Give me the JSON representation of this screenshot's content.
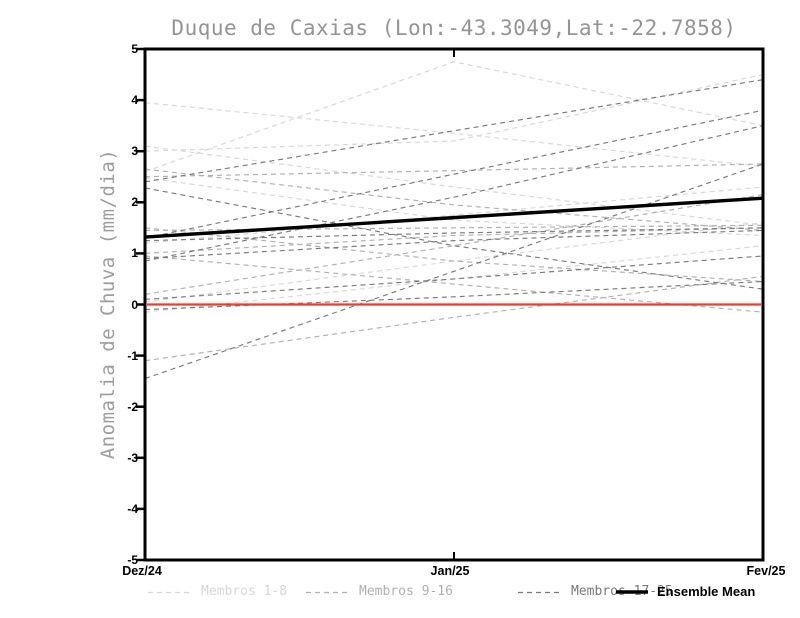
{
  "title": "Duque de Caxias (Lon:-43.3049,Lat:-22.7858)",
  "chart_data": {
    "type": "line",
    "title": "Duque de Caxias (Lon:-43.3049,Lat:-22.7858)",
    "xlabel": "",
    "ylabel": "Anomalia de Chuva (mm/dia)",
    "x": [
      "Dez/24",
      "Jan/25",
      "Fev/25"
    ],
    "ylim": [
      -5,
      5
    ],
    "yticks": [
      -5,
      -4,
      -3,
      -2,
      -1,
      0,
      1,
      2,
      3,
      4,
      5
    ],
    "grid": false,
    "legend_position": "bottom",
    "frame": "box",
    "zero_line": {
      "value": 0,
      "color": "#f23b2c"
    },
    "groups": [
      {
        "name": "Membros 1-8",
        "color": "#d7d7d7",
        "line_style": "dashed",
        "members": [
          [
            3.95,
            3.35,
            2.7
          ],
          [
            2.6,
            4.75,
            3.5
          ],
          [
            3.1,
            2.3,
            1.55
          ],
          [
            3.0,
            3.2,
            4.5
          ],
          [
            2.48,
            1.65,
            1.35
          ],
          [
            1.2,
            1.75,
            2.3
          ],
          [
            0.05,
            0.85,
            1.6
          ],
          [
            -0.15,
            0.5,
            1.15
          ]
        ]
      },
      {
        "name": "Membros 9-16",
        "color": "#b0b0b0",
        "line_style": "dashed",
        "members": [
          [
            2.65,
            1.95,
            1.45
          ],
          [
            1.45,
            1.5,
            1.55
          ],
          [
            1.0,
            1.35,
            1.5
          ],
          [
            0.95,
            0.4,
            -0.15
          ],
          [
            -1.1,
            -0.25,
            0.55
          ],
          [
            0.2,
            1.15,
            2.15
          ],
          [
            2.5,
            2.62,
            2.75
          ],
          [
            1.5,
            0.85,
            0.45
          ]
        ]
      },
      {
        "name": "Membros 17-25",
        "color": "#7a7a7a",
        "line_style": "dashed",
        "members": [
          [
            2.28,
            1.15,
            0.3
          ],
          [
            1.3,
            2.55,
            3.8
          ],
          [
            0.85,
            2.1,
            3.5
          ],
          [
            1.25,
            1.4,
            1.5
          ],
          [
            0.9,
            1.25,
            1.45
          ],
          [
            0.1,
            0.5,
            0.95
          ],
          [
            -0.1,
            0.15,
            0.45
          ],
          [
            -1.45,
            0.65,
            2.75
          ],
          [
            2.4,
            3.4,
            4.4
          ]
        ]
      }
    ],
    "ensemble_mean": {
      "name": "Ensemble Mean",
      "color": "#000000",
      "line_style": "solid",
      "values": [
        1.32,
        1.7,
        2.08
      ]
    }
  }
}
